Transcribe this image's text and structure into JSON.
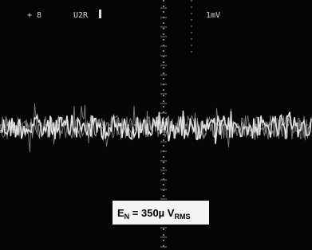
{
  "readout": {
    "left": "+ 8",
    "center": "U2R",
    "right": "1mV"
  },
  "label": {
    "symbol": "E",
    "symbol_subscript": "N",
    "text": " = 350µ V",
    "unit_subscript": "RMS"
  }
}
